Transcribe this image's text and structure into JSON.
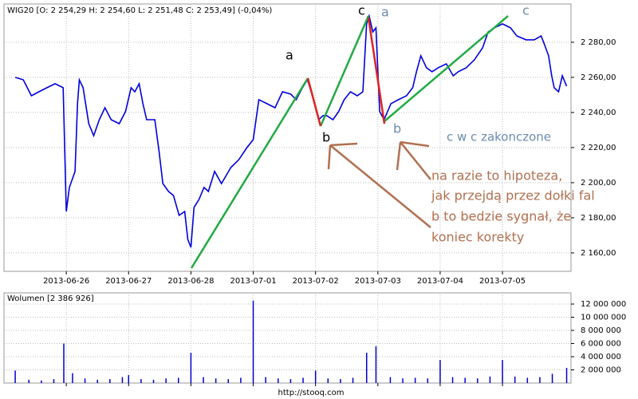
{
  "chart_data": [
    {
      "type": "line",
      "title": "WIG20 [O: 2 254,29 H: 2 254,60 L: 2 251,48 C: 2 253,49] (-0,04%)",
      "color": "#0000dd",
      "grid": true,
      "xlim": [
        0,
        9.1
      ],
      "ylim": [
        2149.5,
        2301.8
      ],
      "xticks": [
        {
          "value": 1,
          "label": "2013-06-26"
        },
        {
          "value": 2,
          "label": "2013-06-27"
        },
        {
          "value": 3,
          "label": "2013-06-28"
        },
        {
          "value": 4,
          "label": "2013-07-01"
        },
        {
          "value": 5,
          "label": "2013-07-02"
        },
        {
          "value": 6,
          "label": "2013-07-03"
        },
        {
          "value": 7,
          "label": "2013-07-04"
        },
        {
          "value": 8,
          "label": "2013-07-05"
        }
      ],
      "yticks": [
        {
          "value": 2160,
          "label": "2 160,00"
        },
        {
          "value": 2180,
          "label": "2 180,00"
        },
        {
          "value": 2200,
          "label": "2 200,00"
        },
        {
          "value": 2220,
          "label": "2 220,00"
        },
        {
          "value": 2240,
          "label": "2 240,00"
        },
        {
          "value": 2260,
          "label": "2 260,00"
        },
        {
          "value": 2280,
          "label": "2 280,00"
        }
      ],
      "x": [
        0.18,
        0.31,
        0.44,
        0.56,
        0.69,
        0.82,
        0.95,
        1.0,
        1.05,
        1.14,
        1.18,
        1.21,
        1.27,
        1.36,
        1.44,
        1.53,
        1.62,
        1.72,
        1.85,
        1.95,
        2.04,
        2.1,
        2.17,
        2.23,
        2.29,
        2.42,
        2.49,
        2.55,
        2.64,
        2.72,
        2.81,
        2.9,
        2.95,
        3.0,
        3.05,
        3.13,
        3.21,
        3.28,
        3.38,
        3.49,
        3.64,
        3.77,
        3.9,
        4.0,
        4.09,
        4.22,
        4.35,
        4.47,
        4.6,
        4.69,
        4.79,
        4.87,
        4.95,
        5.05,
        5.12,
        5.18,
        5.28,
        5.37,
        5.46,
        5.56,
        5.67,
        5.76,
        5.82,
        5.86,
        5.92,
        5.97,
        6.03,
        6.1,
        6.21,
        6.33,
        6.46,
        6.56,
        6.62,
        6.69,
        6.78,
        6.87,
        6.97,
        7.1,
        7.21,
        7.29,
        7.42,
        7.55,
        7.68,
        7.77,
        7.87,
        8.0,
        8.13,
        8.23,
        8.38,
        8.51,
        8.62,
        8.67,
        8.74,
        8.79,
        8.83,
        8.9,
        8.96,
        9.03
      ],
      "values": [
        2260,
        2258.6,
        2249.5,
        2251.8,
        2254.1,
        2256.4,
        2254.1,
        2183.6,
        2197.3,
        2206.4,
        2245,
        2258.6,
        2254.1,
        2233.6,
        2226.8,
        2235.9,
        2242.7,
        2235.9,
        2233.6,
        2240.5,
        2254.1,
        2251.8,
        2256.4,
        2245,
        2235.9,
        2235.9,
        2217.7,
        2199.5,
        2195,
        2192.7,
        2181.4,
        2183.6,
        2167.7,
        2163.2,
        2185.9,
        2190.5,
        2197.3,
        2195,
        2206.4,
        2199.5,
        2208.6,
        2213.2,
        2220,
        2224.5,
        2247.3,
        2245,
        2242.7,
        2251.8,
        2250.5,
        2247.3,
        2254.1,
        2258.6,
        2249.5,
        2235.9,
        2238.2,
        2238.2,
        2235.9,
        2240.5,
        2247.3,
        2251.8,
        2249.5,
        2251.8,
        2290.5,
        2295,
        2285.9,
        2288.2,
        2240.5,
        2235.9,
        2245,
        2247.3,
        2249.5,
        2254.1,
        2263.2,
        2272.3,
        2265.5,
        2263.2,
        2265.5,
        2267.7,
        2260.9,
        2263.2,
        2265.5,
        2270,
        2276.8,
        2285.9,
        2288.2,
        2290.5,
        2288.2,
        2283.6,
        2281.4,
        2281.4,
        2283.6,
        2279.1,
        2272.3,
        2260.9,
        2254.1,
        2251.8,
        2260.9,
        2255
      ]
    },
    {
      "type": "bar",
      "title": "Wolumen [2 386 926]",
      "color": "#0000cc",
      "grid": true,
      "xlim": [
        0,
        9.1
      ],
      "ylim": [
        0,
        13700000
      ],
      "yticks": [
        {
          "value": 2000000,
          "label": "2 000 000"
        },
        {
          "value": 4000000,
          "label": "4 000 000"
        },
        {
          "value": 6000000,
          "label": "6 000 000"
        },
        {
          "value": 8000000,
          "label": "8 000 000"
        },
        {
          "value": 10000000,
          "label": "10 000 000"
        },
        {
          "value": 12000000,
          "label": "12 000 000"
        }
      ],
      "x": [
        0.18,
        0.4,
        0.6,
        0.8,
        0.96,
        1.1,
        1.3,
        1.5,
        1.7,
        1.9,
        2.0,
        2.2,
        2.4,
        2.6,
        2.8,
        3.0,
        3.2,
        3.4,
        3.6,
        3.8,
        4.0,
        4.2,
        4.4,
        4.6,
        4.8,
        5.0,
        5.2,
        5.4,
        5.6,
        5.82,
        5.97,
        6.2,
        6.4,
        6.6,
        6.8,
        7.0,
        7.2,
        7.4,
        7.6,
        7.8,
        8.0,
        8.2,
        8.4,
        8.6,
        8.8,
        9.03
      ],
      "values": [
        1900000,
        500000,
        400000,
        600000,
        6000000,
        1500000,
        700000,
        500000,
        600000,
        900000,
        1200000,
        600000,
        500000,
        700000,
        800000,
        4600000,
        900000,
        700000,
        600000,
        800000,
        12500000,
        900000,
        700000,
        600000,
        800000,
        1900000,
        700000,
        600000,
        800000,
        4600000,
        5600000,
        900000,
        700000,
        800000,
        700000,
        3500000,
        900000,
        800000,
        700000,
        1000000,
        3500000,
        1000000,
        800000,
        900000,
        1400000,
        2300000
      ]
    }
  ],
  "annotations": [
    "a",
    "b",
    "c",
    "a",
    "b",
    "c",
    "c w c zakonczone",
    "na razie to hipoteza,",
    "jak przejdą przez dołki fal",
    "b to bedzie sygnał, że",
    "koniec korekty"
  ],
  "footer": "http://stooq.com"
}
